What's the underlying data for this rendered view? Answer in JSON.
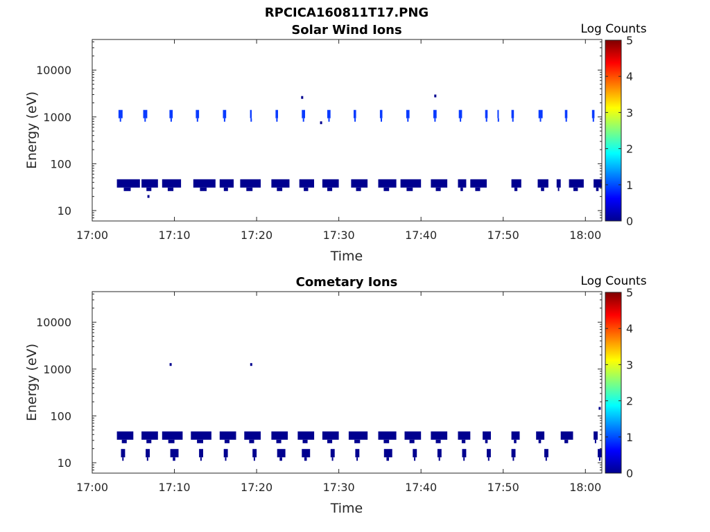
{
  "figure_title": "RPCICA160811T17.PNG",
  "colors": {
    "data": "#00008f",
    "data_light": "#0a3bff",
    "axis": "#262626"
  },
  "colorbar": {
    "label": "Log Counts",
    "ticks": [
      "0",
      "1",
      "2",
      "3",
      "4",
      "5"
    ],
    "range": [
      0,
      5
    ],
    "colormap": "jet"
  },
  "chart_data": [
    {
      "type": "heatmap",
      "title": "Solar Wind Ions",
      "xlabel": "Time",
      "ylabel": "Energy (eV)",
      "y_scale": "log",
      "xlim": [
        "17:00",
        "18:02"
      ],
      "ylim": [
        6,
        45000
      ],
      "x_ticks": [
        "17:00",
        "17:10",
        "17:20",
        "17:30",
        "17:40",
        "17:50",
        "18:00"
      ],
      "y_ticks": [
        "10",
        "100",
        "1000",
        "10000"
      ],
      "bands": [
        {
          "name": "high",
          "energy_eV": 1150,
          "log_counts": 0.9,
          "cells": [
            [
              "17:03.2",
              "17:03.7"
            ],
            [
              "17:06.2",
              "17:06.7"
            ],
            [
              "17:09.4",
              "17:09.8"
            ],
            [
              "17:12.6",
              "17:13.0"
            ],
            [
              "17:15.9",
              "17:16.3"
            ],
            [
              "17:19.2",
              "17:19.4"
            ],
            [
              "17:22.3",
              "17:22.6"
            ],
            [
              "17:25.5",
              "17:25.9"
            ],
            [
              "17:28.6",
              "17:29.0"
            ],
            [
              "17:31.8",
              "17:32.1"
            ],
            [
              "17:35.0",
              "17:35.3"
            ],
            [
              "17:38.2",
              "17:38.6"
            ],
            [
              "17:41.5",
              "17:41.9"
            ],
            [
              "17:44.6",
              "17:45.0"
            ],
            [
              "17:47.8",
              "17:48.1"
            ],
            [
              "17:49.3",
              "17:49.4"
            ],
            [
              "17:51.0",
              "17:51.3"
            ],
            [
              "17:54.3",
              "17:54.8"
            ],
            [
              "17:57.5",
              "17:57.8"
            ],
            [
              "18:00.8",
              "18:01.1"
            ]
          ]
        },
        {
          "name": "low",
          "energy_eV": 38,
          "log_counts": 0.2,
          "cells": [
            [
              "17:03.0",
              "17:05.8"
            ],
            [
              "17:06.0",
              "17:08.0"
            ],
            [
              "17:08.5",
              "17:10.8"
            ],
            [
              "17:12.3",
              "17:15.0"
            ],
            [
              "17:15.5",
              "17:17.2"
            ],
            [
              "17:18.0",
              "17:20.5"
            ],
            [
              "17:21.8",
              "17:24.0"
            ],
            [
              "17:25.2",
              "17:27.0"
            ],
            [
              "17:28.0",
              "17:30.0"
            ],
            [
              "17:31.5",
              "17:33.5"
            ],
            [
              "17:34.8",
              "17:37.0"
            ],
            [
              "17:37.5",
              "17:40.0"
            ],
            [
              "17:41.2",
              "17:43.2"
            ],
            [
              "17:44.5",
              "17:45.5"
            ],
            [
              "17:46.0",
              "17:48.0"
            ],
            [
              "17:51.0",
              "17:52.2"
            ],
            [
              "17:54.2",
              "17:55.5"
            ],
            [
              "17:56.5",
              "17:57.0"
            ],
            [
              "17:58.0",
              "17:59.8"
            ],
            [
              "18:01.0",
              "18:02.0"
            ]
          ]
        }
      ],
      "points": [
        [
          "17:25.5",
          2600
        ],
        [
          "17:27.8",
          750
        ],
        [
          "17:41.7",
          2800
        ],
        [
          "17:06.8",
          20
        ]
      ]
    },
    {
      "type": "heatmap",
      "title": "Cometary Ions",
      "xlabel": "Time",
      "ylabel": "Energy (eV)",
      "y_scale": "log",
      "xlim": [
        "17:00",
        "18:02"
      ],
      "ylim": [
        6,
        45000
      ],
      "x_ticks": [
        "17:00",
        "17:10",
        "17:20",
        "17:30",
        "17:40",
        "17:50",
        "18:00"
      ],
      "y_ticks": [
        "10",
        "100",
        "1000",
        "10000"
      ],
      "bands": [
        {
          "name": "upper",
          "energy_eV": 38,
          "log_counts": 0.2,
          "cells": [
            [
              "17:03.0",
              "17:05.0"
            ],
            [
              "17:06.0",
              "17:08.0"
            ],
            [
              "17:08.5",
              "17:11.0"
            ],
            [
              "17:12.0",
              "17:14.5"
            ],
            [
              "17:15.5",
              "17:17.5"
            ],
            [
              "17:18.5",
              "17:20.5"
            ],
            [
              "17:21.8",
              "17:23.8"
            ],
            [
              "17:25.0",
              "17:27.0"
            ],
            [
              "17:28.0",
              "17:30.0"
            ],
            [
              "17:31.2",
              "17:33.5"
            ],
            [
              "17:34.8",
              "17:37.0"
            ],
            [
              "17:38.0",
              "17:40.0"
            ],
            [
              "17:41.2",
              "17:43.2"
            ],
            [
              "17:44.5",
              "17:46.0"
            ],
            [
              "17:47.5",
              "17:48.5"
            ],
            [
              "17:51.0",
              "17:52.0"
            ],
            [
              "17:54.0",
              "17:55.0"
            ],
            [
              "17:57.0",
              "17:58.5"
            ],
            [
              "18:01.0",
              "18:01.5"
            ]
          ]
        },
        {
          "name": "lower",
          "energy_eV": 16,
          "log_counts": 0.2,
          "cells": [
            [
              "17:03.5",
              "17:04.0"
            ],
            [
              "17:06.5",
              "17:07.0"
            ],
            [
              "17:09.5",
              "17:10.5"
            ],
            [
              "17:13.0",
              "17:13.5"
            ],
            [
              "17:16.0",
              "17:16.5"
            ],
            [
              "17:19.5",
              "17:20.0"
            ],
            [
              "17:22.5",
              "17:23.5"
            ],
            [
              "17:25.5",
              "17:26.5"
            ],
            [
              "17:29.0",
              "17:29.5"
            ],
            [
              "17:32.0",
              "17:32.5"
            ],
            [
              "17:35.5",
              "17:36.5"
            ],
            [
              "17:39.0",
              "17:39.5"
            ],
            [
              "17:42.0",
              "17:42.5"
            ],
            [
              "17:45.0",
              "17:45.5"
            ],
            [
              "17:48.0",
              "17:48.5"
            ],
            [
              "17:51.0",
              "17:51.5"
            ],
            [
              "17:55.0",
              "17:55.5"
            ],
            [
              "18:01.5",
              "18:02.0"
            ]
          ]
        }
      ],
      "points": [
        [
          "17:09.5",
          1250
        ],
        [
          "17:19.3",
          1250
        ],
        [
          "18:01.7",
          145
        ]
      ]
    }
  ]
}
